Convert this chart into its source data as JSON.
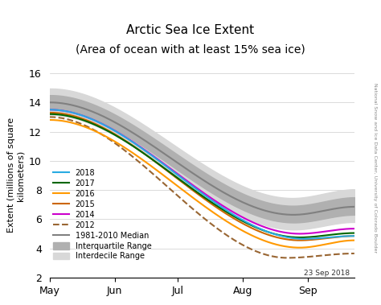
{
  "title_line1": "Arctic Sea Ice Extent",
  "title_line2": "(Area of ocean with at least 15% sea ice)",
  "ylabel": "Extent (millions of square\nkilometers)",
  "watermark": "National Snow and Ice Data Center, University of Colorado Boulder",
  "date_label": "23 Sep 2018",
  "ylim": [
    2,
    16
  ],
  "yticks": [
    2,
    4,
    6,
    8,
    10,
    12,
    14,
    16
  ],
  "colors": {
    "2018": "#29abe2",
    "2017": "#006600",
    "2016": "#ff9900",
    "2015": "#cc6600",
    "2014": "#cc00cc",
    "2012": "#996633",
    "median": "#808080",
    "iqr": "#b0b0b0",
    "idr": "#d8d8d8"
  },
  "background": "#ffffff"
}
